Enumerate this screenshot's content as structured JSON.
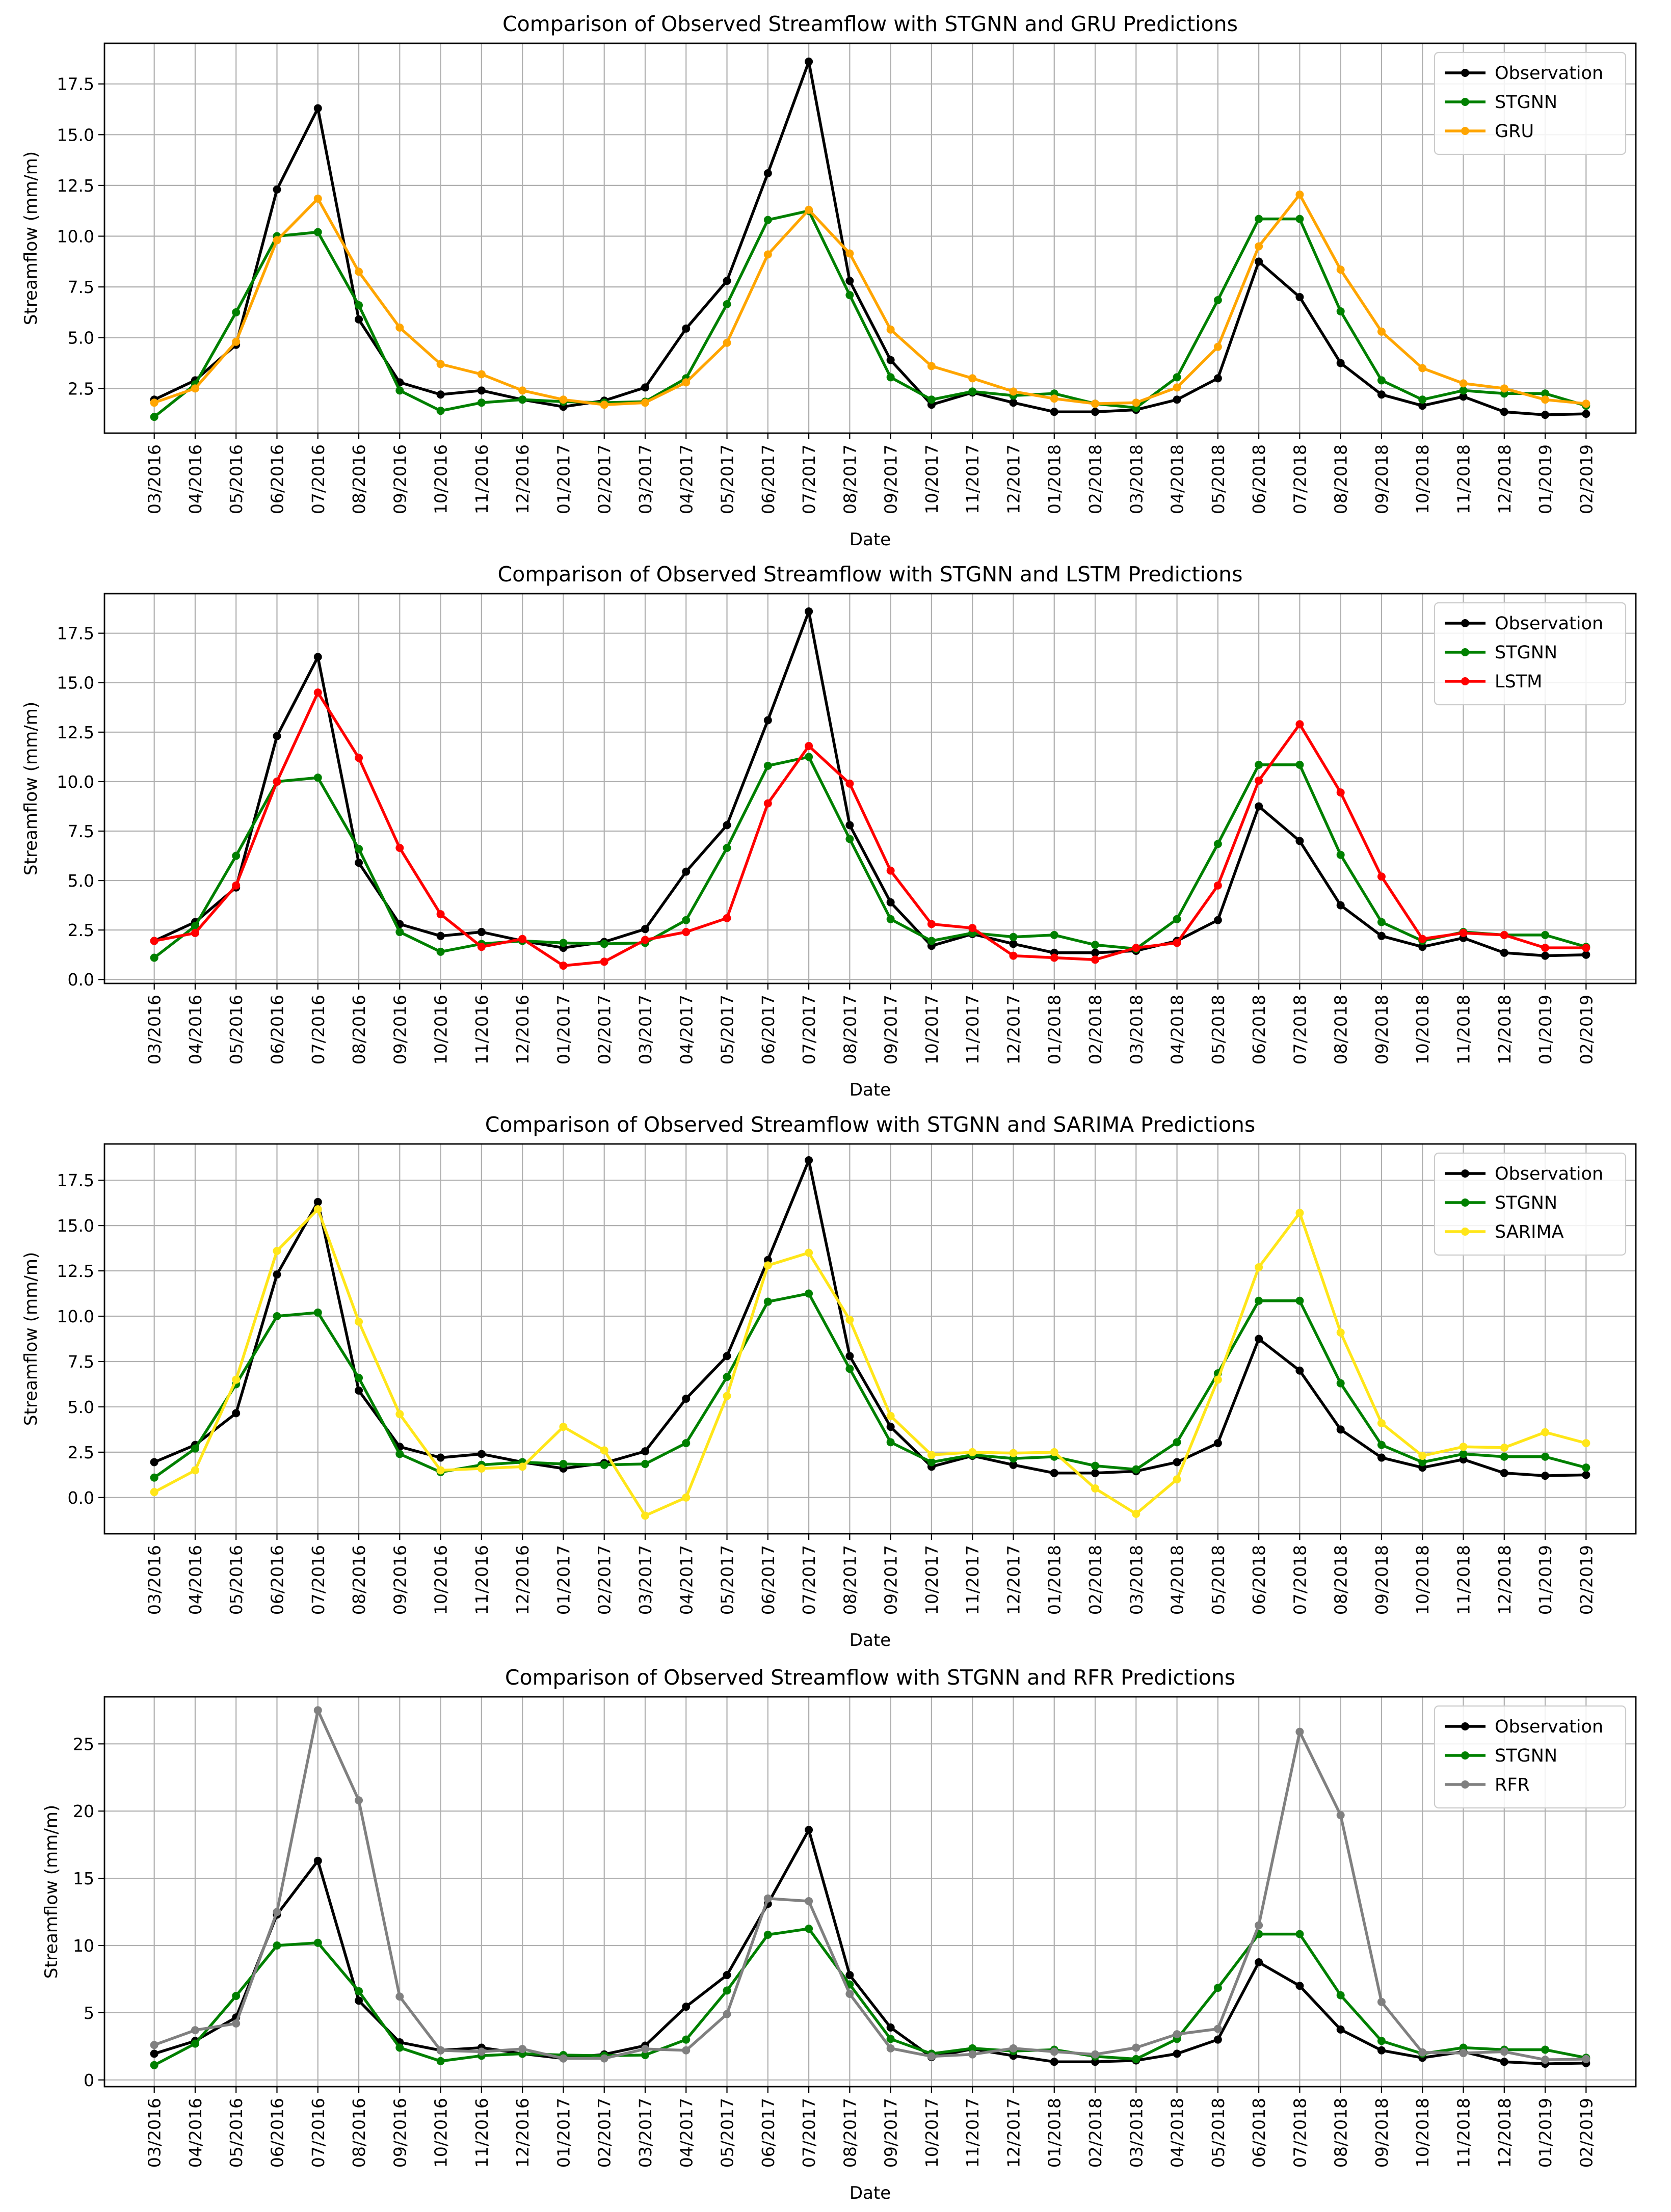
{
  "chart_data": [
    {
      "type": "line",
      "title": "Comparison of Observed Streamflow with STGNN and GRU Predictions",
      "xlabel": "Date",
      "ylabel": "Streamflow (mm/m)",
      "ylim": [
        0.3,
        19.5
      ],
      "yticks": [
        "2.5",
        "5.0",
        "7.5",
        "10.0",
        "12.5",
        "15.0",
        "17.5"
      ],
      "legend": "top-right",
      "grid": true,
      "categories": [
        "03/2016",
        "04/2016",
        "05/2016",
        "06/2016",
        "07/2016",
        "08/2016",
        "09/2016",
        "10/2016",
        "11/2016",
        "12/2016",
        "01/2017",
        "02/2017",
        "03/2017",
        "04/2017",
        "05/2017",
        "06/2017",
        "07/2017",
        "08/2017",
        "09/2017",
        "10/2017",
        "11/2017",
        "12/2017",
        "01/2018",
        "02/2018",
        "03/2018",
        "04/2018",
        "05/2018",
        "06/2018",
        "07/2018",
        "08/2018",
        "09/2018",
        "10/2018",
        "11/2018",
        "12/2018",
        "01/2019",
        "02/2019"
      ],
      "series": [
        {
          "name": "Observation",
          "color": "#000000",
          "values": [
            1.95,
            2.9,
            4.65,
            12.3,
            16.3,
            5.9,
            2.8,
            2.2,
            2.4,
            1.95,
            1.6,
            1.9,
            2.55,
            5.45,
            7.8,
            13.1,
            18.6,
            7.8,
            3.9,
            1.7,
            2.3,
            1.8,
            1.35,
            1.35,
            1.45,
            1.95,
            3.0,
            8.75,
            7.0,
            3.75,
            2.2,
            1.65,
            2.1,
            1.35,
            1.2,
            1.25
          ]
        },
        {
          "name": "STGNN",
          "color": "#008000",
          "values": [
            1.1,
            2.7,
            6.25,
            10.0,
            10.2,
            6.6,
            2.4,
            1.4,
            1.8,
            1.95,
            1.85,
            1.8,
            1.85,
            3.0,
            6.65,
            10.8,
            11.25,
            7.1,
            3.05,
            1.95,
            2.35,
            2.15,
            2.25,
            1.75,
            1.55,
            3.05,
            6.85,
            10.85,
            10.85,
            6.3,
            2.9,
            1.95,
            2.4,
            2.25,
            2.25,
            1.65
          ]
        },
        {
          "name": "GRU",
          "color": "#ffa500",
          "values": [
            1.8,
            2.5,
            4.8,
            9.8,
            11.85,
            8.25,
            5.5,
            3.7,
            3.2,
            2.4,
            1.95,
            1.7,
            1.8,
            2.8,
            4.75,
            9.1,
            11.3,
            9.15,
            5.4,
            3.6,
            3.0,
            2.35,
            2.0,
            1.75,
            1.8,
            2.55,
            4.55,
            9.5,
            12.05,
            8.35,
            5.3,
            3.5,
            2.75,
            2.5,
            1.95,
            1.75
          ]
        }
      ]
    },
    {
      "type": "line",
      "title": "Comparison of Observed Streamflow with STGNN and LSTM Predictions",
      "xlabel": "Date",
      "ylabel": "Streamflow (mm/m)",
      "ylim": [
        -0.2,
        19.5
      ],
      "yticks": [
        "0.0",
        "2.5",
        "5.0",
        "7.5",
        "10.0",
        "12.5",
        "15.0",
        "17.5"
      ],
      "legend": "top-right",
      "grid": true,
      "categories": [
        "03/2016",
        "04/2016",
        "05/2016",
        "06/2016",
        "07/2016",
        "08/2016",
        "09/2016",
        "10/2016",
        "11/2016",
        "12/2016",
        "01/2017",
        "02/2017",
        "03/2017",
        "04/2017",
        "05/2017",
        "06/2017",
        "07/2017",
        "08/2017",
        "09/2017",
        "10/2017",
        "11/2017",
        "12/2017",
        "01/2018",
        "02/2018",
        "03/2018",
        "04/2018",
        "05/2018",
        "06/2018",
        "07/2018",
        "08/2018",
        "09/2018",
        "10/2018",
        "11/2018",
        "12/2018",
        "01/2019",
        "02/2019"
      ],
      "series": [
        {
          "name": "Observation",
          "color": "#000000",
          "values": [
            1.95,
            2.9,
            4.65,
            12.3,
            16.3,
            5.9,
            2.8,
            2.2,
            2.4,
            1.95,
            1.6,
            1.9,
            2.55,
            5.45,
            7.8,
            13.1,
            18.6,
            7.8,
            3.9,
            1.7,
            2.3,
            1.8,
            1.35,
            1.35,
            1.45,
            1.95,
            3.0,
            8.75,
            7.0,
            3.75,
            2.2,
            1.65,
            2.1,
            1.35,
            1.2,
            1.25
          ]
        },
        {
          "name": "STGNN",
          "color": "#008000",
          "values": [
            1.1,
            2.7,
            6.25,
            10.0,
            10.2,
            6.6,
            2.4,
            1.4,
            1.8,
            1.95,
            1.85,
            1.8,
            1.85,
            3.0,
            6.65,
            10.8,
            11.25,
            7.1,
            3.05,
            1.95,
            2.35,
            2.15,
            2.25,
            1.75,
            1.55,
            3.05,
            6.85,
            10.85,
            10.85,
            6.3,
            2.9,
            1.95,
            2.4,
            2.25,
            2.25,
            1.65
          ]
        },
        {
          "name": "LSTM",
          "color": "#ff0000",
          "values": [
            1.95,
            2.35,
            4.75,
            10.0,
            14.5,
            11.2,
            6.65,
            3.3,
            1.65,
            2.05,
            0.7,
            0.9,
            2.0,
            2.4,
            3.1,
            8.9,
            11.8,
            9.9,
            5.5,
            2.8,
            2.6,
            1.2,
            1.1,
            1.0,
            1.6,
            1.85,
            4.75,
            10.05,
            12.9,
            9.45,
            5.2,
            2.05,
            2.35,
            2.25,
            1.6,
            1.6
          ]
        }
      ]
    },
    {
      "type": "line",
      "title": "Comparison of Observed Streamflow with STGNN and SARIMA Predictions",
      "xlabel": "Date",
      "ylabel": "Streamflow (mm/m)",
      "ylim": [
        -2.0,
        19.5
      ],
      "yticks": [
        "0.0",
        "2.5",
        "5.0",
        "7.5",
        "10.0",
        "12.5",
        "15.0",
        "17.5"
      ],
      "legend": "top-right",
      "grid": true,
      "categories": [
        "03/2016",
        "04/2016",
        "05/2016",
        "06/2016",
        "07/2016",
        "08/2016",
        "09/2016",
        "10/2016",
        "11/2016",
        "12/2016",
        "01/2017",
        "02/2017",
        "03/2017",
        "04/2017",
        "05/2017",
        "06/2017",
        "07/2017",
        "08/2017",
        "09/2017",
        "10/2017",
        "11/2017",
        "12/2017",
        "01/2018",
        "02/2018",
        "03/2018",
        "04/2018",
        "05/2018",
        "06/2018",
        "07/2018",
        "08/2018",
        "09/2018",
        "10/2018",
        "11/2018",
        "12/2018",
        "01/2019",
        "02/2019"
      ],
      "series": [
        {
          "name": "Observation",
          "color": "#000000",
          "values": [
            1.95,
            2.9,
            4.65,
            12.3,
            16.3,
            5.9,
            2.8,
            2.2,
            2.4,
            1.95,
            1.6,
            1.9,
            2.55,
            5.45,
            7.8,
            13.1,
            18.6,
            7.8,
            3.9,
            1.7,
            2.3,
            1.8,
            1.35,
            1.35,
            1.45,
            1.95,
            3.0,
            8.75,
            7.0,
            3.75,
            2.2,
            1.65,
            2.1,
            1.35,
            1.2,
            1.25
          ]
        },
        {
          "name": "STGNN",
          "color": "#008000",
          "values": [
            1.1,
            2.7,
            6.25,
            10.0,
            10.2,
            6.6,
            2.4,
            1.4,
            1.8,
            1.95,
            1.85,
            1.8,
            1.85,
            3.0,
            6.65,
            10.8,
            11.25,
            7.1,
            3.05,
            1.95,
            2.35,
            2.15,
            2.25,
            1.75,
            1.55,
            3.05,
            6.85,
            10.85,
            10.85,
            6.3,
            2.9,
            1.95,
            2.4,
            2.25,
            2.25,
            1.65
          ]
        },
        {
          "name": "SARIMA",
          "color": "#ffe619",
          "values": [
            0.3,
            1.5,
            6.5,
            13.6,
            15.9,
            9.7,
            4.6,
            1.5,
            1.6,
            1.7,
            3.9,
            2.6,
            -1.0,
            0.0,
            5.6,
            12.8,
            13.5,
            9.8,
            4.5,
            2.35,
            2.5,
            2.45,
            2.5,
            0.5,
            -0.9,
            1.0,
            6.5,
            12.7,
            15.7,
            9.1,
            4.1,
            2.3,
            2.8,
            2.75,
            3.6,
            3.0
          ]
        }
      ]
    },
    {
      "type": "line",
      "title": "Comparison of Observed Streamflow with STGNN and RFR Predictions",
      "xlabel": "Date",
      "ylabel": "Streamflow (mm/m)",
      "ylim": [
        -0.5,
        28.5
      ],
      "yticks": [
        "0",
        "5",
        "10",
        "15",
        "20",
        "25"
      ],
      "legend": "top-right",
      "grid": true,
      "categories": [
        "03/2016",
        "04/2016",
        "05/2016",
        "06/2016",
        "07/2016",
        "08/2016",
        "09/2016",
        "10/2016",
        "11/2016",
        "12/2016",
        "01/2017",
        "02/2017",
        "03/2017",
        "04/2017",
        "05/2017",
        "06/2017",
        "07/2017",
        "08/2017",
        "09/2017",
        "10/2017",
        "11/2017",
        "12/2017",
        "01/2018",
        "02/2018",
        "03/2018",
        "04/2018",
        "05/2018",
        "06/2018",
        "07/2018",
        "08/2018",
        "09/2018",
        "10/2018",
        "11/2018",
        "12/2018",
        "01/2019",
        "02/2019"
      ],
      "series": [
        {
          "name": "Observation",
          "color": "#000000",
          "values": [
            1.95,
            2.9,
            4.65,
            12.3,
            16.3,
            5.9,
            2.8,
            2.2,
            2.4,
            1.95,
            1.6,
            1.9,
            2.55,
            5.45,
            7.8,
            13.1,
            18.6,
            7.8,
            3.9,
            1.7,
            2.3,
            1.8,
            1.35,
            1.35,
            1.45,
            1.95,
            3.0,
            8.75,
            7.0,
            3.75,
            2.2,
            1.65,
            2.1,
            1.35,
            1.2,
            1.25
          ]
        },
        {
          "name": "STGNN",
          "color": "#008000",
          "values": [
            1.1,
            2.7,
            6.25,
            10.0,
            10.2,
            6.6,
            2.4,
            1.4,
            1.8,
            1.95,
            1.85,
            1.8,
            1.85,
            3.0,
            6.65,
            10.8,
            11.25,
            7.1,
            3.05,
            1.95,
            2.35,
            2.15,
            2.25,
            1.75,
            1.55,
            3.05,
            6.85,
            10.85,
            10.85,
            6.3,
            2.9,
            1.95,
            2.4,
            2.25,
            2.25,
            1.65
          ]
        },
        {
          "name": "RFR",
          "color": "#808080",
          "values": [
            2.6,
            3.7,
            4.2,
            12.5,
            27.5,
            20.8,
            6.2,
            2.2,
            2.1,
            2.3,
            1.6,
            1.6,
            2.3,
            2.2,
            4.9,
            13.5,
            13.3,
            6.4,
            2.35,
            1.75,
            1.9,
            2.35,
            2.1,
            1.9,
            2.4,
            3.4,
            3.8,
            11.5,
            25.9,
            19.7,
            5.8,
            2.05,
            2.0,
            2.1,
            1.5,
            1.55
          ]
        }
      ]
    }
  ]
}
